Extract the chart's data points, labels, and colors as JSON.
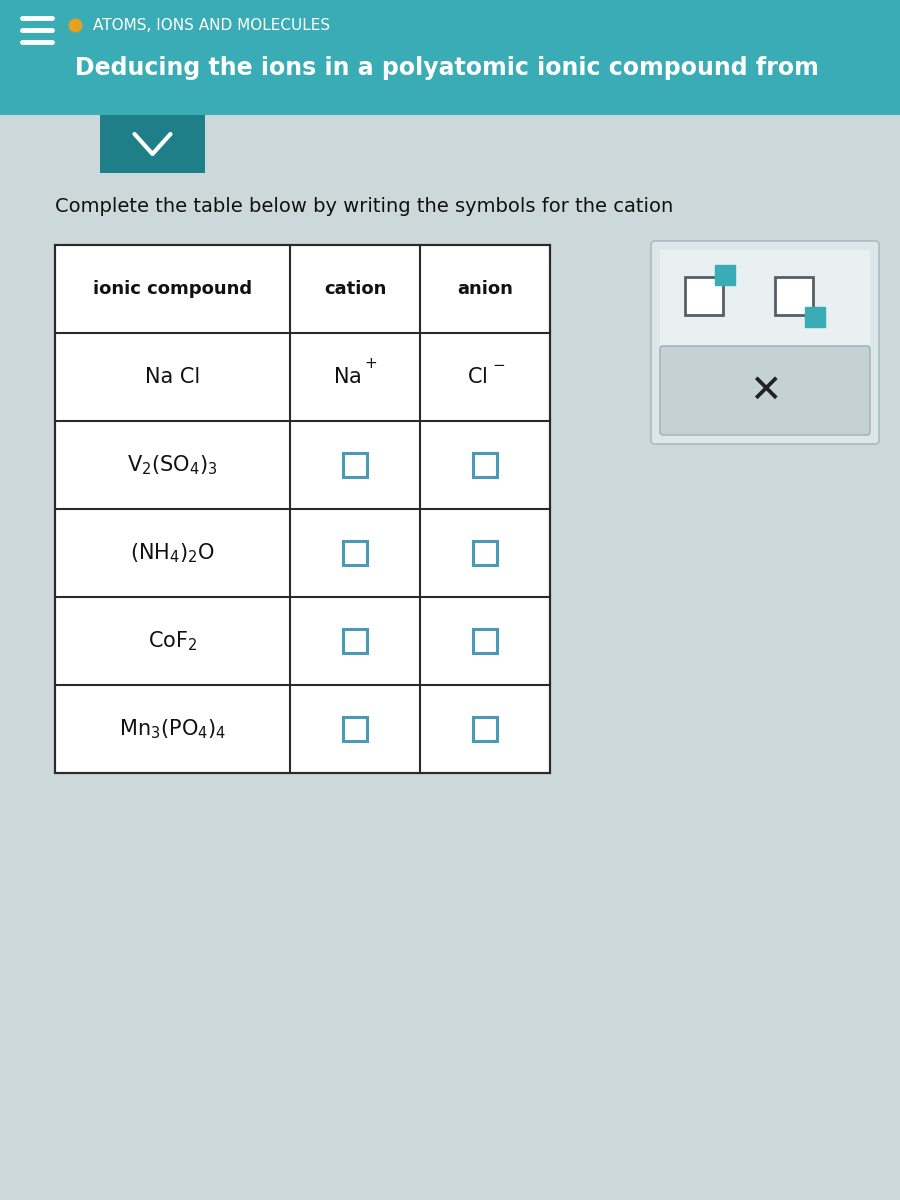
{
  "title_topic": "ATOMS, IONS AND MOLECULES",
  "title_sub": "Deducing the ions in a polyatomic ionic compound from",
  "instruction": "Complete the table below by writing the symbols for the cation",
  "header_bg": "#3aacb5",
  "header_bg2": "#2a9aa3",
  "page_bg": "#cdd8db",
  "table_header": [
    "ionic compound",
    "cation",
    "anion"
  ],
  "rows": [
    {
      "compound": "NaCl",
      "cation_text": "Na^+",
      "anion_text": "Cl^-",
      "filled": true
    },
    {
      "compound": "V_2(SO_4)_3",
      "cation_text": "",
      "anion_text": "",
      "filled": false
    },
    {
      "compound": "(NH_4)_2O",
      "cation_text": "",
      "anion_text": "",
      "filled": false
    },
    {
      "compound": "CoF_2",
      "cation_text": "",
      "anion_text": "",
      "filled": false
    },
    {
      "compound": "Mn_3(PO_4)_4",
      "cation_text": "",
      "anion_text": "",
      "filled": false
    }
  ],
  "teal_color": "#3aacb5",
  "dark_teal": "#1e7f88",
  "box_color": "#4a9ab5",
  "dot_color": "#e8a020",
  "panel_bg": "#dde6e8",
  "x_panel_bg": "#c5d2d5"
}
